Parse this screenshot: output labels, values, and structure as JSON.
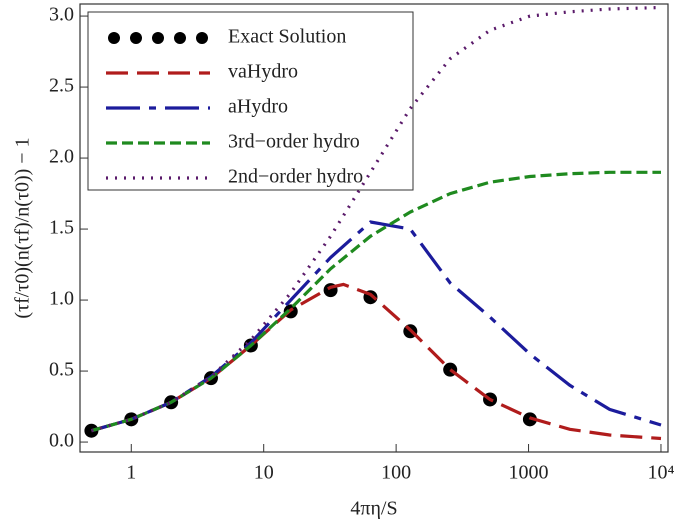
{
  "chart_data": {
    "type": "line",
    "x_label": "4πη/S",
    "y_label": "(τf/τ0)(n(τf)/n(τ0)) − 1",
    "log_x": true,
    "xlim": [
      0.41,
      11300
    ],
    "xticks": [
      1,
      10,
      100,
      1000,
      {
        "value": 10000,
        "label": "10⁴"
      }
    ],
    "ylim": [
      -0.07,
      3.085
    ],
    "yticks": [
      {
        "value": 0,
        "label": "0.0"
      },
      {
        "value": 0.5,
        "label": "0.5"
      },
      {
        "value": 1,
        "label": "1.0"
      },
      {
        "value": 1.5,
        "label": "1.5"
      },
      {
        "value": 2,
        "label": "2.0"
      },
      {
        "value": 2.5,
        "label": "2.5"
      },
      {
        "value": 3,
        "label": "3.0"
      }
    ],
    "legend": "upper left",
    "series": [
      {
        "name": "Exact Solution",
        "color": "#000000",
        "marker": "circle",
        "x": [
          0.5,
          1,
          2,
          4,
          8,
          16,
          32,
          64,
          128,
          256,
          512,
          1024
        ],
        "values": [
          0.08,
          0.16,
          0.28,
          0.45,
          0.68,
          0.92,
          1.07,
          1.02,
          0.78,
          0.51,
          0.3,
          0.16
        ]
      },
      {
        "name": "vaHydro",
        "color": "#b01c1c",
        "x": [
          0.5,
          1,
          2,
          4,
          8,
          16,
          32,
          40,
          64,
          128,
          256,
          512,
          1024,
          2048,
          4096,
          10000
        ],
        "values": [
          0.08,
          0.16,
          0.28,
          0.45,
          0.68,
          0.93,
          1.09,
          1.11,
          1.04,
          0.79,
          0.51,
          0.3,
          0.17,
          0.09,
          0.05,
          0.025
        ]
      },
      {
        "name": "aHydro",
        "color": "#1c1c9c",
        "x": [
          0.5,
          1,
          2,
          4,
          8,
          16,
          32,
          64,
          128,
          256,
          512,
          1024,
          2048,
          4096,
          10000
        ],
        "values": [
          0.08,
          0.16,
          0.28,
          0.46,
          0.7,
          1.0,
          1.3,
          1.55,
          1.5,
          1.12,
          0.88,
          0.62,
          0.4,
          0.23,
          0.12
        ]
      },
      {
        "name": "3rd−order hydro",
        "color": "#1f8a1f",
        "x": [
          0.5,
          1,
          2,
          4,
          8,
          16,
          32,
          64,
          128,
          256,
          512,
          1024,
          2048,
          4096,
          10000
        ],
        "values": [
          0.08,
          0.16,
          0.28,
          0.45,
          0.68,
          0.94,
          1.22,
          1.45,
          1.62,
          1.75,
          1.83,
          1.87,
          1.89,
          1.9,
          1.9
        ]
      },
      {
        "name": "2nd−order hydro",
        "color": "#5a1a6a",
        "x": [
          0.5,
          1,
          2,
          4,
          8,
          16,
          32,
          64,
          128,
          256,
          512,
          1024,
          2048,
          4096,
          10000
        ],
        "values": [
          0.08,
          0.16,
          0.28,
          0.46,
          0.72,
          1.05,
          1.45,
          1.9,
          2.35,
          2.7,
          2.9,
          3.0,
          3.03,
          3.05,
          3.06
        ]
      }
    ]
  }
}
